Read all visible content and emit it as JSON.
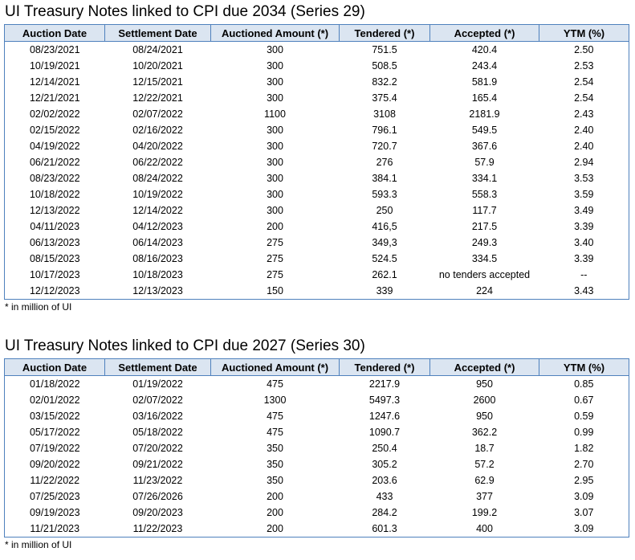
{
  "columns": [
    "Auction Date",
    "Settlement Date",
    "Auctioned Amount (*)",
    "Tendered (*)",
    "Accepted (*)",
    "YTM (%)"
  ],
  "tables": [
    {
      "title": "UI Treasury Notes linked to CPI due 2034 (Series 29)",
      "rows": [
        [
          "08/23/2021",
          "08/24/2021",
          "300",
          "751.5",
          "420.4",
          "2.50"
        ],
        [
          "10/19/2021",
          "10/20/2021",
          "300",
          "508.5",
          "243.4",
          "2.53"
        ],
        [
          "12/14/2021",
          "12/15/2021",
          "300",
          "832.2",
          "581.9",
          "2.54"
        ],
        [
          "12/21/2021",
          "12/22/2021",
          "300",
          "375.4",
          "165.4",
          "2.54"
        ],
        [
          "02/02/2022",
          "02/07/2022",
          "1100",
          "3108",
          "2181.9",
          "2.43"
        ],
        [
          "02/15/2022",
          "02/16/2022",
          "300",
          "796.1",
          "549.5",
          "2.40"
        ],
        [
          "04/19/2022",
          "04/20/2022",
          "300",
          "720.7",
          "367.6",
          "2.40"
        ],
        [
          "06/21/2022",
          "06/22/2022",
          "300",
          "276",
          "57.9",
          "2.94"
        ],
        [
          "08/23/2022",
          "08/24/2022",
          "300",
          "384.1",
          "334.1",
          "3.53"
        ],
        [
          "10/18/2022",
          "10/19/2022",
          "300",
          "593.3",
          "558.3",
          "3.59"
        ],
        [
          "12/13/2022",
          "12/14/2022",
          "300",
          "250",
          "117.7",
          "3.49"
        ],
        [
          "04/11/2023",
          "04/12/2023",
          "200",
          "416,5",
          "217.5",
          "3.39"
        ],
        [
          "06/13/2023",
          "06/14/2023",
          "275",
          "349,3",
          "249.3",
          "3.40"
        ],
        [
          "08/15/2023",
          "08/16/2023",
          "275",
          "524.5",
          "334.5",
          "3.39"
        ],
        [
          "10/17/2023",
          "10/18/2023",
          "275",
          "262.1",
          "no tenders accepted",
          "--"
        ],
        [
          "12/12/2023",
          "12/13/2023",
          "150",
          "339",
          "224",
          "3.43"
        ]
      ],
      "footnote": "* in million of UI"
    },
    {
      "title": "UI Treasury Notes linked to CPI due 2027 (Series 30)",
      "rows": [
        [
          "01/18/2022",
          "01/19/2022",
          "475",
          "2217.9",
          "950",
          "0.85"
        ],
        [
          "02/01/2022",
          "02/07/2022",
          "1300",
          "5497.3",
          "2600",
          "0.67"
        ],
        [
          "03/15/2022",
          "03/16/2022",
          "475",
          "1247.6",
          "950",
          "0.59"
        ],
        [
          "05/17/2022",
          "05/18/2022",
          "475",
          "1090.7",
          "362.2",
          "0.99"
        ],
        [
          "07/19/2022",
          "07/20/2022",
          "350",
          "250.4",
          "18.7",
          "1.82"
        ],
        [
          "09/20/2022",
          "09/21/2022",
          "350",
          "305.2",
          "57.2",
          "2.70"
        ],
        [
          "11/22/2022",
          "11/23/2022",
          "350",
          "203.6",
          "62.9",
          "2.95"
        ],
        [
          "07/25/2023",
          "07/26/2026",
          "200",
          "433",
          "377",
          "3.09"
        ],
        [
          "09/19/2023",
          "09/20/2023",
          "200",
          "284.2",
          "199.2",
          "3.07"
        ],
        [
          "11/21/2023",
          "11/22/2023",
          "200",
          "601.3",
          "400",
          "3.09"
        ]
      ],
      "footnote": "* in million of UI"
    }
  ],
  "colors": {
    "header_fill": "#dbe5f1",
    "border": "#4f81bd"
  }
}
